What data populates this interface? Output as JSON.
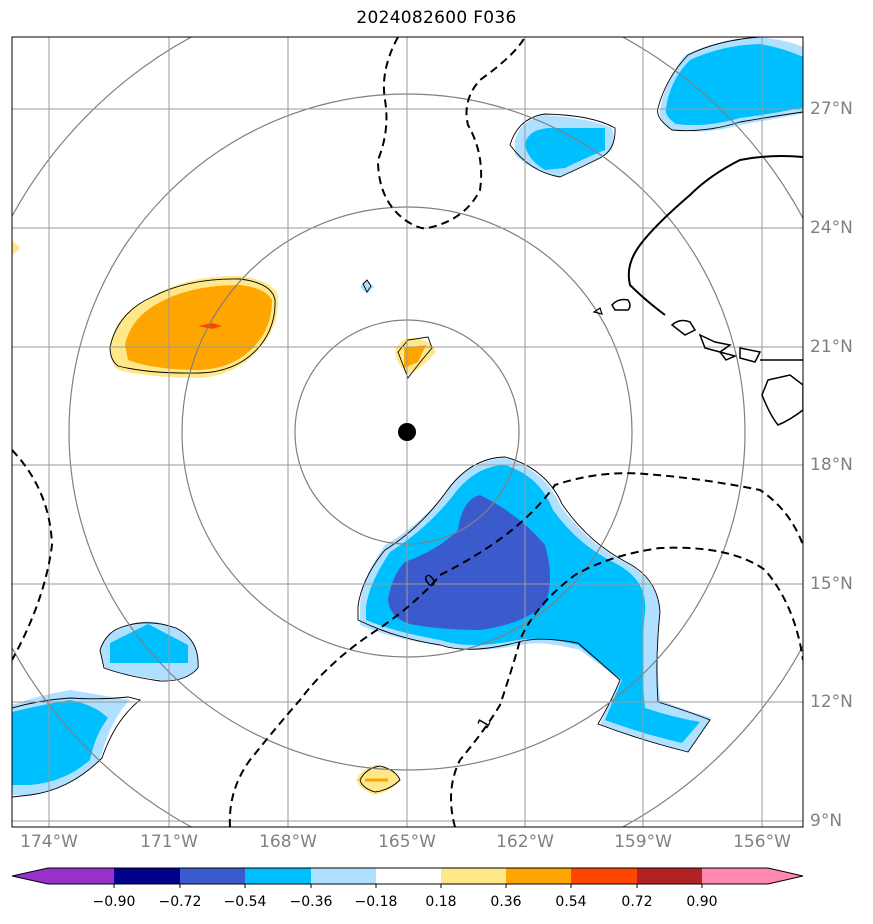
{
  "title": "2024082600 F036",
  "longitude_labels": [
    "174°W",
    "171°W",
    "168°W",
    "165°W",
    "162°W",
    "159°W",
    "156°W"
  ],
  "latitude_labels": [
    "27°N",
    "24°N",
    "21°N",
    "18°N",
    "15°N",
    "12°N",
    "9°N"
  ],
  "colorbar": {
    "ticks": [
      "−0.90",
      "−0.72",
      "−0.54",
      "−0.36",
      "−0.18",
      "0.18",
      "0.36",
      "0.54",
      "0.72",
      "0.90"
    ],
    "colors": [
      "#9932cc",
      "#00008b",
      "#3b5bcc",
      "#00bfff",
      "#b0e0ff",
      "#ffffff",
      "#ffe88a",
      "#ffa500",
      "#ff4500",
      "#b22222",
      "#ff88b0"
    ]
  },
  "contour_labels": [
    "0",
    "1"
  ],
  "center_marker": "storm-center-dot",
  "colors": {
    "neg_strong": "#3b5bcc",
    "neg_mid": "#00bfff",
    "neg_weak": "#b0e0ff",
    "pos_weak": "#ffe88a",
    "pos_mid": "#ffa500",
    "pos_strong": "#ff4500",
    "grid": "#808080"
  }
}
